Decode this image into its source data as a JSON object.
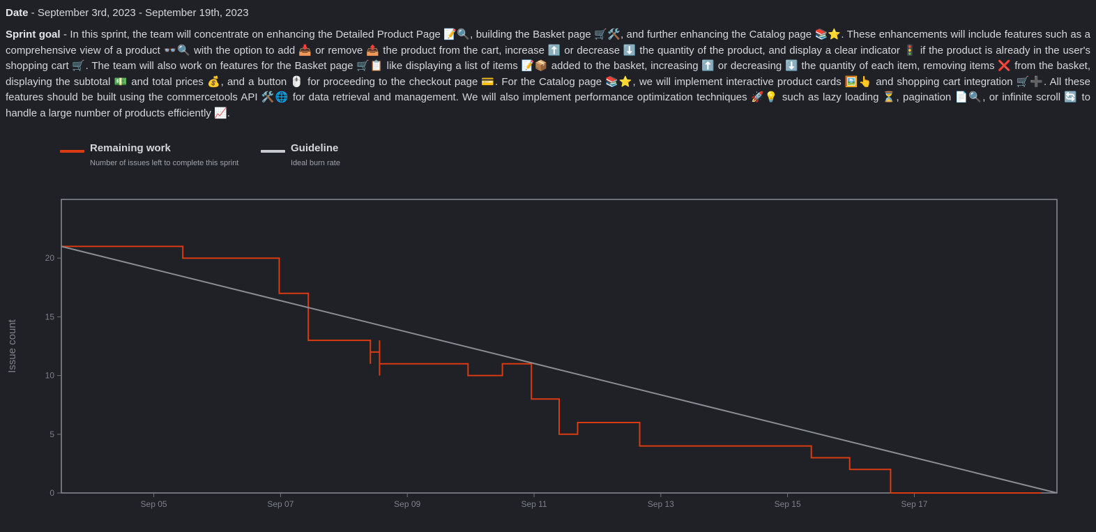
{
  "header": {
    "date_label": "Date",
    "date_value": " - September 3rd, 2023 - September 19th, 2023",
    "goal_label": "Sprint goal",
    "goal_text": " - In this sprint, the team will concentrate on enhancing the Detailed Product Page 📝🔍, building the Basket page 🛒🛠️, and further enhancing the Catalog page 📚⭐. These enhancements will include features such as a comprehensive view of a product 👓🔍 with the option to add 📥 or remove 📤 the product from the cart, increase ⬆️ or decrease ⬇️ the quantity of the product, and display a clear indicator 🚦 if the product is already in the user's shopping cart 🛒. The team will also work on features for the Basket page 🛒📋 like displaying a list of items 📝📦 added to the basket, increasing ⬆️ or decreasing ⬇️ the quantity of each item, removing items ❌ from the basket, displaying the subtotal 💵 and total prices 💰, and a button 🖱️ for proceeding to the checkout page 💳. For the Catalog page 📚⭐, we will implement interactive product cards 🖼️👆 and shopping cart integration 🛒➕. All these features should be built using the commercetools API 🛠️🌐 for data retrieval and management. We will also implement performance optimization techniques 🚀💡 such as lazy loading ⏳, pagination 📄🔍, or infinite scroll 🔄 to handle a large number of products efficiently 📈."
  },
  "legend": {
    "remaining": {
      "title": "Remaining work",
      "subtitle": "Number of issues left to complete this sprint",
      "color": "#d93b12"
    },
    "guideline": {
      "title": "Guideline",
      "subtitle": "Ideal burn rate",
      "color": "#c7cad0"
    }
  },
  "chart_data": {
    "type": "line",
    "title": "",
    "xlabel": "",
    "ylabel": "Issue count",
    "x_unit": "days",
    "xlim": [
      "2023-09-03T13:00",
      "2023-09-19T06:00"
    ],
    "ylim": [
      0,
      25
    ],
    "x_ticks": [
      "Sep 05",
      "Sep 07",
      "Sep 09",
      "Sep 11",
      "Sep 13",
      "Sep 15",
      "Sep 17"
    ],
    "x_tick_values": [
      "2023-09-05",
      "2023-09-07",
      "2023-09-09",
      "2023-09-11",
      "2023-09-13",
      "2023-09-15",
      "2023-09-17"
    ],
    "y_ticks": [
      0,
      5,
      10,
      15,
      20
    ],
    "grid": false,
    "legend": "top-left",
    "series": [
      {
        "name": "Remaining work",
        "style": "step",
        "color": "#d93b12",
        "points": [
          [
            "2023-09-03T13:00",
            21
          ],
          [
            "2023-09-05T11:00",
            21
          ],
          [
            "2023-09-05T11:00",
            20
          ],
          [
            "2023-09-06T23:30",
            20
          ],
          [
            "2023-09-06T23:30",
            17
          ],
          [
            "2023-09-07T10:30",
            17
          ],
          [
            "2023-09-07T10:30",
            13
          ],
          [
            "2023-09-08T10:00",
            13
          ],
          [
            "2023-09-08T10:00",
            11
          ],
          [
            "2023-09-08T10:00",
            12
          ],
          [
            "2023-09-08T13:30",
            12
          ],
          [
            "2023-09-08T13:30",
            13
          ],
          [
            "2023-09-08T13:30",
            10
          ],
          [
            "2023-09-08T13:30",
            11
          ],
          [
            "2023-09-09T23:00",
            11
          ],
          [
            "2023-09-09T23:00",
            10
          ],
          [
            "2023-09-10T12:00",
            10
          ],
          [
            "2023-09-10T12:00",
            11
          ],
          [
            "2023-09-10T23:00",
            11
          ],
          [
            "2023-09-10T23:00",
            8
          ],
          [
            "2023-09-11T09:30",
            8
          ],
          [
            "2023-09-11T09:30",
            5
          ],
          [
            "2023-09-11T16:30",
            5
          ],
          [
            "2023-09-11T16:30",
            6
          ],
          [
            "2023-09-12T16:00",
            6
          ],
          [
            "2023-09-12T16:00",
            4
          ],
          [
            "2023-09-15T09:00",
            4
          ],
          [
            "2023-09-15T09:00",
            3
          ],
          [
            "2023-09-15T23:30",
            3
          ],
          [
            "2023-09-15T23:30",
            2
          ],
          [
            "2023-09-16T15:00",
            2
          ],
          [
            "2023-09-16T15:00",
            0
          ],
          [
            "2023-09-19T00:00",
            0
          ]
        ]
      },
      {
        "name": "Guideline",
        "style": "linear",
        "color": "#8a8d93",
        "points": [
          [
            "2023-09-03T13:00",
            21
          ],
          [
            "2023-09-19T06:00",
            0
          ]
        ]
      }
    ]
  }
}
